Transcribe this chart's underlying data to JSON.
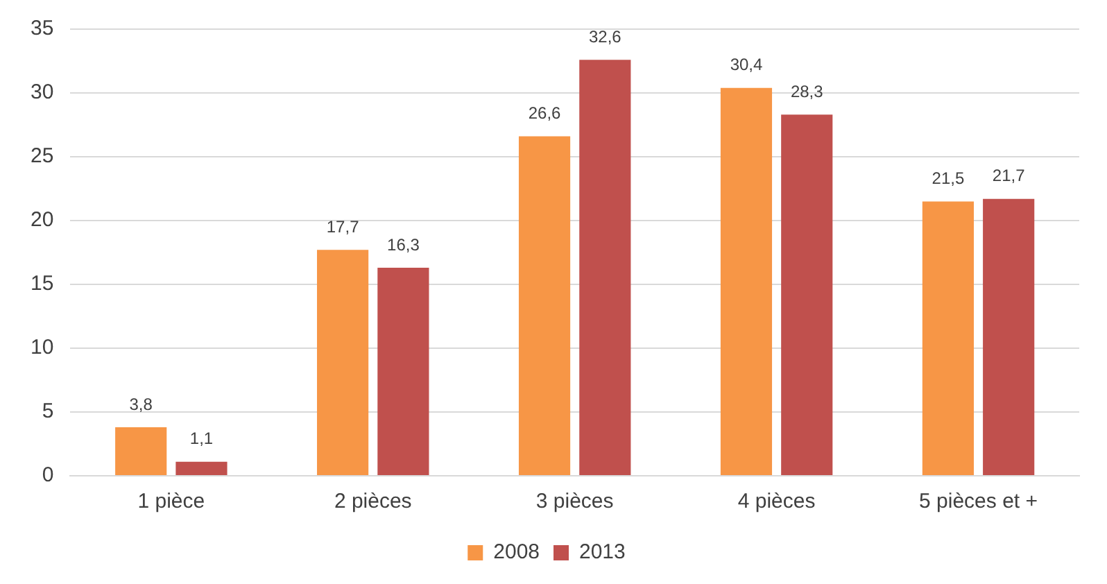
{
  "chart_data": {
    "type": "bar",
    "categories": [
      "1 pièce",
      "2 pièces",
      "3 pièces",
      "4 pièces",
      "5 pièces et +"
    ],
    "series": [
      {
        "name": "2008",
        "color": "#f79646",
        "values": [
          3.8,
          17.7,
          26.6,
          30.4,
          21.5
        ],
        "value_labels": [
          "3,8",
          "17,7",
          "26,6",
          "30,4",
          "21,5"
        ]
      },
      {
        "name": "2013",
        "color": "#c0504d",
        "values": [
          1.1,
          16.3,
          32.6,
          28.3,
          21.7
        ],
        "value_labels": [
          "1,1",
          "16,3",
          "32,6",
          "28,3",
          "21,7"
        ]
      }
    ],
    "ylim": [
      0,
      35
    ],
    "yticks": [
      0,
      5,
      10,
      15,
      20,
      25,
      30,
      35
    ],
    "grid": "y",
    "legend": "bottom"
  }
}
